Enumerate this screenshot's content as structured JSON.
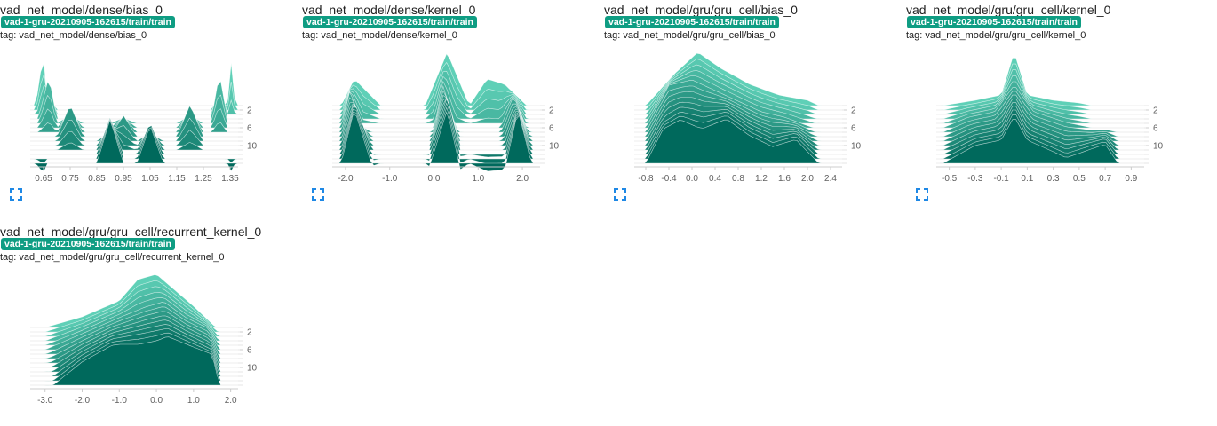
{
  "ui": {
    "tag_prefix": "tag:",
    "accent_color": "#0f9d83",
    "expand_icon": "fullscreen-icon"
  },
  "cards": [
    {
      "title": "vad_net_model/dense/bias_0",
      "run": "vad-1-gru-20210905-162615/train/train",
      "tag": "vad_net_model/dense/bias_0",
      "chart_data": {
        "type": "area",
        "title": "vad_net_model/dense/bias_0",
        "x_ticks": [
          "0.65",
          "0.75",
          "0.85",
          "0.95",
          "1.05",
          "1.15",
          "1.25",
          "1.35"
        ],
        "y_ticks": [
          "2",
          "6",
          "10"
        ],
        "xlim": [
          0.6,
          1.38
        ],
        "steps": 14,
        "series": [
          {
            "step": 1,
            "x": [
              0.62,
              0.65,
              0.66,
              0.95,
              1.05,
              1.34,
              1.35,
              1.37
            ],
            "y": [
              0,
              1,
              0,
              0,
              0,
              0,
              1,
              0
            ]
          },
          {
            "step": 4,
            "x": [
              0.63,
              0.67,
              0.7,
              0.9,
              1.1,
              1.28,
              1.31,
              1.34
            ],
            "y": [
              0,
              0.8,
              0,
              0,
              0,
              0,
              0.85,
              0
            ]
          },
          {
            "step": 8,
            "x": [
              0.7,
              0.75,
              0.8,
              0.9,
              0.95,
              1.0,
              1.15,
              1.2,
              1.25
            ],
            "y": [
              0,
              0.6,
              0,
              0,
              0.4,
              0,
              0,
              0.6,
              0
            ]
          },
          {
            "step": 12,
            "x": [
              0.85,
              0.9,
              0.95,
              1.0,
              1.05,
              1.1
            ],
            "y": [
              0,
              0.7,
              0,
              0,
              0.6,
              0
            ]
          }
        ]
      }
    },
    {
      "title": "vad_net_model/dense/kernel_0",
      "run": "vad-1-gru-20210905-162615/train/train",
      "tag": "vad_net_model/dense/kernel_0",
      "chart_data": {
        "type": "area",
        "title": "vad_net_model/dense/kernel_0",
        "x_ticks": [
          "-2.0",
          "-1.0",
          "0.0",
          "1.0",
          "2.0"
        ],
        "y_ticks": [
          "2",
          "6",
          "10"
        ],
        "xlim": [
          -2.3,
          2.4
        ],
        "steps": 14,
        "series": [
          {
            "step": 1,
            "x": [
              -2.1,
              -1.8,
              -1.2,
              -0.2,
              0.3,
              0.8,
              1.2,
              1.6,
              2.1
            ],
            "y": [
              0,
              0.5,
              0,
              0,
              1,
              0,
              0.5,
              0.4,
              0
            ]
          },
          {
            "step": 6,
            "x": [
              -2.1,
              -1.9,
              -1.6,
              0,
              0.2,
              0.5,
              1.5,
              1.8,
              2.1
            ],
            "y": [
              0,
              0.7,
              0,
              0,
              0.8,
              0,
              0,
              0.6,
              0
            ]
          },
          {
            "step": 11,
            "x": [
              -2.1,
              -1.8,
              -1.4,
              -0.1,
              0.3,
              0.6,
              1.6,
              1.9,
              2.2
            ],
            "y": [
              0,
              0.9,
              0,
              0,
              1,
              0,
              0,
              0.8,
              0
            ]
          }
        ]
      }
    },
    {
      "title": "vad_net_model/gru/gru_cell/bias_0",
      "run": "vad-1-gru-20210905-162615/train/train",
      "tag": "vad_net_model/gru/gru_cell/bias_0",
      "chart_data": {
        "type": "area",
        "title": "vad_net_model/gru/gru_cell/bias_0",
        "x_ticks": [
          "-0.8",
          "-0.4",
          "0.0",
          "0.4",
          "0.8",
          "1.2",
          "1.6",
          "2.0",
          "2.4"
        ],
        "y_ticks": [
          "2",
          "6",
          "10"
        ],
        "xlim": [
          -1.0,
          2.6
        ],
        "steps": 14,
        "series": [
          {
            "step": 1,
            "x": [
              -0.8,
              -0.3,
              0.1,
              0.5,
              1.0,
              1.5,
              2.0,
              2.2
            ],
            "y": [
              0,
              0.6,
              1,
              0.7,
              0.4,
              0.2,
              0.1,
              0
            ]
          },
          {
            "step": 6,
            "x": [
              -0.8,
              -0.4,
              0,
              0.4,
              0.8,
              1.2,
              1.6,
              2.1
            ],
            "y": [
              0,
              0.8,
              0.9,
              0.7,
              0.5,
              0.3,
              0.2,
              0
            ]
          },
          {
            "step": 12,
            "x": [
              -0.8,
              -0.5,
              -0.2,
              0.2,
              0.6,
              1.0,
              1.4,
              1.8,
              2.2
            ],
            "y": [
              0,
              0.6,
              0.8,
              0.7,
              0.8,
              0.5,
              0.3,
              0.4,
              0
            ]
          }
        ]
      }
    },
    {
      "title": "vad_net_model/gru/gru_cell/kernel_0",
      "run": "vad-1-gru-20210905-162615/train/train",
      "tag": "vad_net_model/gru/gru_cell/kernel_0",
      "chart_data": {
        "type": "area",
        "title": "vad_net_model/gru/gru_cell/kernel_0",
        "x_ticks": [
          "-0.5",
          "-0.3",
          "-0.1",
          "0.1",
          "0.3",
          "0.5",
          "0.7",
          "0.9"
        ],
        "y_ticks": [
          "2",
          "6",
          "10"
        ],
        "xlim": [
          -0.6,
          1.0
        ],
        "steps": 14,
        "series": [
          {
            "step": 1,
            "x": [
              -0.55,
              -0.3,
              -0.1,
              0.0,
              0.1,
              0.3,
              0.5,
              0.6
            ],
            "y": [
              0,
              0.1,
              0.2,
              1,
              0.2,
              0.1,
              0.05,
              0
            ]
          },
          {
            "step": 6,
            "x": [
              -0.55,
              -0.35,
              -0.15,
              0.0,
              0.15,
              0.4,
              0.6
            ],
            "y": [
              0,
              0.2,
              0.3,
              0.8,
              0.3,
              0.1,
              0
            ]
          },
          {
            "step": 12,
            "x": [
              -0.55,
              -0.3,
              -0.1,
              0.0,
              0.1,
              0.4,
              0.7,
              0.8
            ],
            "y": [
              0,
              0.3,
              0.4,
              0.9,
              0.4,
              0.1,
              0.3,
              0
            ]
          }
        ]
      }
    },
    {
      "title": "vad_net_model/gru/gru_cell/recurrent_kernel_0",
      "run": "vad-1-gru-20210905-162615/train/train",
      "tag": "vad_net_model/gru/gru_cell/recurrent_kernel_0",
      "chart_data": {
        "type": "area",
        "title": "vad_net_model/gru/gru_cell/recurrent_kernel_0",
        "x_ticks": [
          "-3.0",
          "-2.0",
          "-1.0",
          "0.0",
          "1.0",
          "2.0"
        ],
        "y_ticks": [
          "2",
          "6",
          "10"
        ],
        "xlim": [
          -3.4,
          2.2
        ],
        "steps": 14,
        "series": [
          {
            "step": 1,
            "x": [
              -3.0,
              -2.0,
              -1.0,
              -0.5,
              0.0,
              0.5,
              1.0,
              1.6
            ],
            "y": [
              0,
              0.2,
              0.5,
              0.9,
              1,
              0.7,
              0.4,
              0
            ]
          },
          {
            "step": 6,
            "x": [
              -3.0,
              -2.0,
              -1.0,
              -0.3,
              0.2,
              0.8,
              1.4,
              1.7
            ],
            "y": [
              0,
              0.3,
              0.6,
              0.8,
              0.9,
              0.6,
              0.4,
              0
            ]
          },
          {
            "step": 12,
            "x": [
              -2.8,
              -2.0,
              -1.2,
              -0.4,
              0.3,
              0.9,
              1.5,
              1.7
            ],
            "y": [
              0,
              0.4,
              0.7,
              0.8,
              0.9,
              0.7,
              0.5,
              0
            ]
          }
        ]
      }
    }
  ]
}
